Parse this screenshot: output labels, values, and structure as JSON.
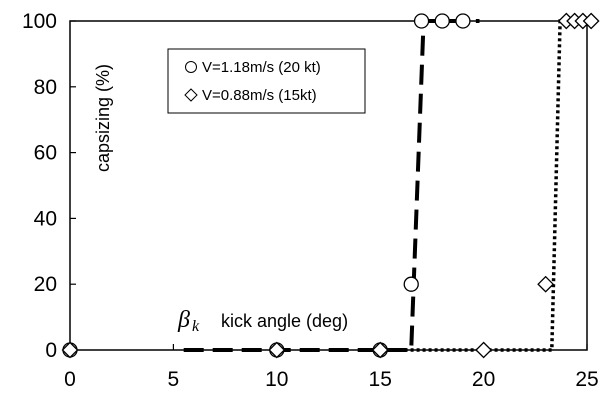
{
  "chart_data": {
    "type": "scatter",
    "xlabel_symbol": "β",
    "xlabel_subscript": "k",
    "xlabel": "kick angle (deg)",
    "ylabel": "capsizing (%)",
    "xlim": [
      0,
      25
    ],
    "ylim": [
      0,
      100
    ],
    "xticks": [
      "0",
      "5",
      "10",
      "15",
      "20",
      "25"
    ],
    "yticks": [
      "0",
      "20",
      "40",
      "60",
      "80",
      "100"
    ],
    "legend_position": "top-left inside",
    "series": [
      {
        "name": "V=1.18m/s (20 kt)",
        "marker": "circle",
        "points": [
          [
            0,
            0
          ],
          [
            10,
            0
          ],
          [
            15,
            0
          ],
          [
            16.5,
            20
          ],
          [
            17,
            100
          ],
          [
            18,
            100
          ],
          [
            19,
            100
          ]
        ],
        "fit_line": {
          "style": "dashed",
          "x": [
            5.5,
            16.5,
            17.1,
            19.8
          ],
          "y": [
            0,
            0,
            100,
            100
          ]
        }
      },
      {
        "name": "V=0.88m/s (15kt)",
        "marker": "diamond",
        "points": [
          [
            0,
            0
          ],
          [
            10,
            0
          ],
          [
            15,
            0
          ],
          [
            20,
            0
          ],
          [
            23,
            20
          ],
          [
            24,
            100
          ],
          [
            24.4,
            100
          ],
          [
            24.8,
            100
          ],
          [
            25.2,
            100
          ]
        ],
        "fit_line": {
          "style": "dotted",
          "x": [
            15.6,
            23.3,
            23.7,
            24.9
          ],
          "y": [
            0,
            0,
            100,
            100
          ]
        }
      }
    ]
  }
}
